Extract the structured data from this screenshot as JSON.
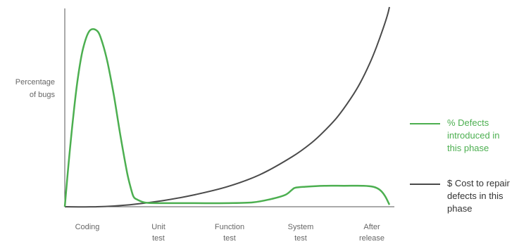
{
  "chart_data": {
    "type": "line",
    "ylabel_lines": [
      "Percentage",
      "of bugs"
    ],
    "categories": [
      {
        "lines": [
          "Coding"
        ]
      },
      {
        "lines": [
          "Unit",
          "test"
        ]
      },
      {
        "lines": [
          "Function",
          "test"
        ]
      },
      {
        "lines": [
          "System",
          "test"
        ]
      },
      {
        "lines": [
          "After",
          "release"
        ]
      }
    ],
    "x_range": [
      0,
      5
    ],
    "y_range": [
      0,
      100
    ],
    "grid": false,
    "legend_position": "right",
    "series": [
      {
        "name": "% Defects introduced in this phase",
        "name_lines": [
          "% Defects",
          "introduced in",
          "this phase"
        ],
        "color": "#4caf50",
        "x": [
          0,
          0.06,
          0.13,
          0.2,
          0.28,
          0.38,
          0.5,
          0.58,
          0.66,
          0.76,
          0.86,
          0.96,
          1.02,
          1.06,
          1.12,
          1.25,
          1.5,
          2.0,
          2.5,
          2.9,
          3.2,
          3.4,
          3.5,
          3.55,
          3.7,
          4.0,
          4.3,
          4.6,
          4.75,
          4.85,
          4.93,
          5.0
        ],
        "y": [
          0,
          22,
          45,
          64,
          79,
          88,
          88,
          82,
          72,
          55,
          35,
          17,
          9,
          5,
          3.5,
          2,
          1.8,
          1.8,
          1.8,
          2.2,
          4,
          6,
          8.5,
          9.5,
          10,
          10.5,
          10.5,
          10.5,
          10,
          8.5,
          5.5,
          1
        ]
      },
      {
        "name": "$ Cost to repair defects in this phase",
        "name_lines": [
          "$ Cost to repair",
          "defects in this",
          "phase"
        ],
        "color": "#4a4a4a",
        "x": [
          0,
          0.5,
          1.0,
          1.5,
          2.0,
          2.5,
          3.0,
          3.5,
          3.8,
          4.0,
          4.2,
          4.4,
          4.55,
          4.7,
          4.8,
          4.9,
          4.97,
          5.0
        ],
        "y": [
          0,
          0,
          1,
          3,
          6,
          10,
          16,
          25,
          32,
          38,
          45,
          54,
          62,
          72,
          80,
          89,
          96,
          100
        ]
      }
    ]
  }
}
